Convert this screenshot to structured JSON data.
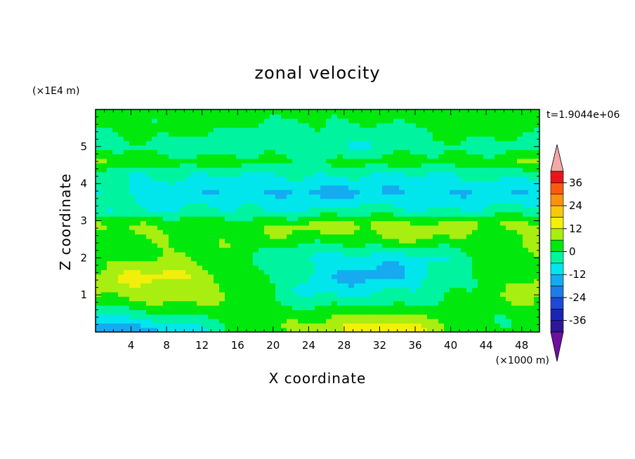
{
  "chart_data": {
    "type": "heatmap",
    "title": "zonal velocity",
    "xlabel": "X coordinate",
    "ylabel": "Z coordinate",
    "x_unit": "(×1000 m)",
    "y_unit": "(×1E4 m)",
    "time_label": "t=1.9044e+06",
    "xlim": [
      0,
      50
    ],
    "ylim": [
      0,
      6
    ],
    "x_ticks": [
      "4",
      "8",
      "12",
      "16",
      "20",
      "24",
      "28",
      "32",
      "36",
      "40",
      "44",
      "48"
    ],
    "y_ticks": [
      "1",
      "2",
      "3",
      "4",
      "5"
    ],
    "colorbar": {
      "levels": [
        -42,
        -36,
        -30,
        -24,
        -18,
        -12,
        -6,
        0,
        6,
        12,
        18,
        24,
        30,
        36,
        42
      ],
      "tick_labels": [
        "-36",
        "-24",
        "-12",
        "0",
        "12",
        "24",
        "36"
      ],
      "colors": [
        "#6e119f",
        "#2c1898",
        "#1a25b7",
        "#1f48d8",
        "#1e7cea",
        "#16aaf0",
        "#00e6ec",
        "#00f4a0",
        "#00e80c",
        "#a8ee10",
        "#f2ef0a",
        "#f7c80c",
        "#fb920d",
        "#fa5a10",
        "#e8161a",
        "#f4a9a7"
      ],
      "extend": "both"
    },
    "field_description_values": {
      "z_bands": [
        {
          "z": 0.1,
          "values": [
            -20,
            -15,
            -10,
            -5,
            0,
            3,
            8,
            14,
            16,
            12,
            6,
            2,
            3
          ]
        },
        {
          "z": 0.4,
          "values": [
            -8,
            -6,
            -3,
            0,
            3,
            2,
            4,
            8,
            10,
            7,
            3,
            1,
            4
          ]
        },
        {
          "z": 0.9,
          "values": [
            5,
            8,
            8,
            6,
            4,
            0,
            -4,
            -6,
            -5,
            -2,
            2,
            4,
            6
          ]
        },
        {
          "z": 1.5,
          "values": [
            8,
            12,
            14,
            10,
            6,
            -2,
            -8,
            -12,
            -14,
            -10,
            -4,
            4,
            8
          ]
        },
        {
          "z": 2.0,
          "values": [
            4,
            6,
            6,
            4,
            2,
            -2,
            -6,
            -10,
            -10,
            -8,
            -4,
            2,
            4
          ]
        },
        {
          "z": 2.6,
          "values": [
            2,
            4,
            6,
            6,
            4,
            4,
            5,
            6,
            8,
            8,
            6,
            4,
            6
          ]
        },
        {
          "z": 2.9,
          "values": [
            10,
            6,
            3,
            4,
            6,
            6,
            7,
            8,
            9,
            8,
            7,
            7,
            8
          ]
        },
        {
          "z": 3.3,
          "values": [
            -4,
            -5,
            -6,
            -6,
            -6,
            -7,
            -6,
            -5,
            -5,
            -5,
            -5,
            -5,
            -5
          ]
        },
        {
          "z": 3.8,
          "values": [
            -6,
            -8,
            -10,
            -10,
            -11,
            -13,
            -14,
            -13,
            -12,
            -12,
            -12,
            -11,
            -10
          ]
        },
        {
          "z": 4.3,
          "values": [
            -2,
            -4,
            -6,
            -6,
            -5,
            -4,
            -5,
            -5,
            -5,
            -5,
            -5,
            -4,
            -3
          ]
        },
        {
          "z": 4.6,
          "values": [
            5,
            6,
            4,
            3,
            2,
            1,
            1,
            2,
            2,
            3,
            4,
            4,
            6
          ]
        },
        {
          "z": 5.0,
          "values": [
            -2,
            -3,
            -4,
            -4,
            -4,
            -4,
            -4,
            -5,
            -5,
            -4,
            -3,
            -2,
            -1
          ]
        },
        {
          "z": 5.5,
          "values": [
            2,
            2,
            2,
            1,
            0,
            -1,
            -2,
            -2,
            -3,
            1,
            2,
            2,
            2
          ]
        },
        {
          "z": 5.9,
          "values": [
            3,
            3,
            3,
            3,
            2,
            2,
            3,
            3,
            2,
            3,
            3,
            3,
            3
          ]
        }
      ],
      "x_nodes": [
        0,
        4,
        8,
        12,
        16,
        20,
        24,
        28,
        32,
        36,
        40,
        44,
        50
      ]
    }
  }
}
